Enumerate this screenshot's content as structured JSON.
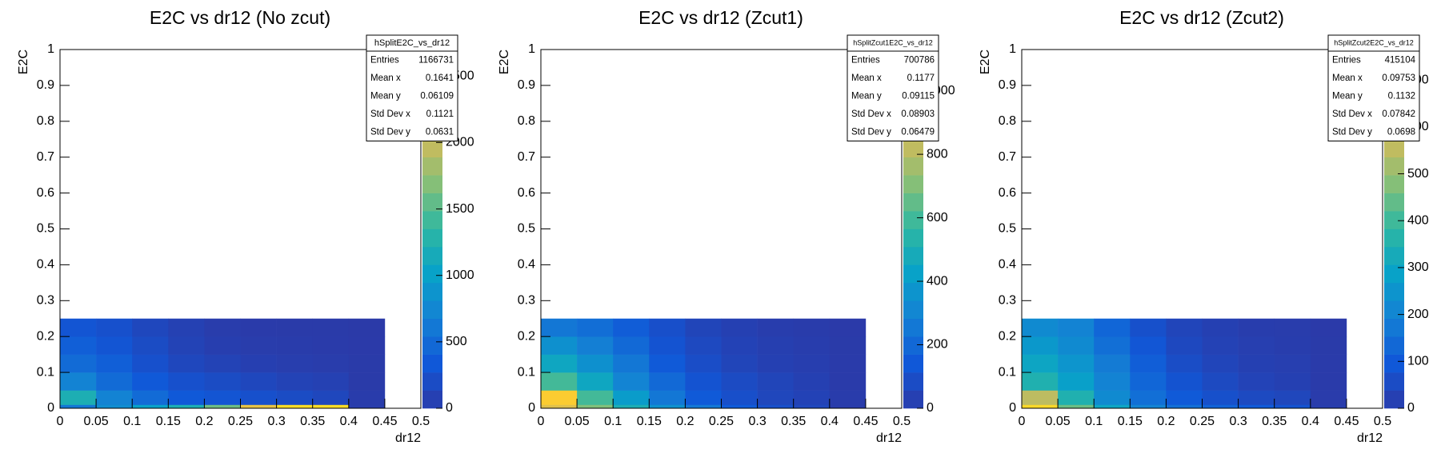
{
  "chart_data": [
    {
      "type": "heatmap",
      "title": "E2C vs dr12 (No zcut)",
      "xlabel": "dr12",
      "ylabel": "E2C",
      "xlim": [
        0,
        0.5
      ],
      "ylim": [
        0,
        1
      ],
      "xticks": [
        0,
        0.05,
        0.1,
        0.15,
        0.2,
        0.25,
        0.3,
        0.35,
        0.4,
        0.45,
        0.5
      ],
      "yticks": [
        0,
        0.1,
        0.2,
        0.3,
        0.4,
        0.5,
        0.6,
        0.7,
        0.8,
        0.9,
        1
      ],
      "xbins": [
        0,
        0.05,
        0.1,
        0.15,
        0.2,
        0.25,
        0.3,
        0.35,
        0.4,
        0.45,
        0.5
      ],
      "ybins": [
        0,
        0.01,
        0.05,
        0.1,
        0.15,
        0.2,
        0.25
      ],
      "values": [
        [
          600,
          800,
          1000,
          1200,
          1600,
          2200,
          2500,
          2500,
          30,
          0
        ],
        [
          1200,
          700,
          500,
          350,
          300,
          250,
          200,
          150,
          20,
          0
        ],
        [
          700,
          500,
          350,
          250,
          200,
          150,
          100,
          80,
          10,
          0
        ],
        [
          500,
          400,
          250,
          150,
          100,
          60,
          40,
          30,
          10,
          0
        ],
        [
          400,
          300,
          200,
          100,
          50,
          30,
          20,
          15,
          5,
          0
        ],
        [
          300,
          250,
          150,
          80,
          30,
          15,
          10,
          8,
          3,
          0
        ]
      ],
      "zlim": [
        0,
        2700
      ],
      "zticks": [
        0,
        500,
        1000,
        1500,
        2000,
        2500
      ],
      "colormap": [
        "#2b3aa8",
        "#1058d8",
        "#1480d4",
        "#08a2c8",
        "#2db7a2",
        "#85bf78",
        "#cfbb5a",
        "#fbc834",
        "#f8fa10"
      ],
      "stats": {
        "name": "hSplitE2C_vs_dr12",
        "rows": [
          [
            "Entries",
            1166731
          ],
          [
            "Mean x",
            0.1641
          ],
          [
            "Mean y",
            0.06109
          ],
          [
            "Std Dev x",
            0.1121
          ],
          [
            "Std Dev y",
            0.0631
          ]
        ]
      }
    },
    {
      "type": "heatmap",
      "title": "E2C vs dr12 (Zcut1)",
      "xlabel": "dr12",
      "ylabel": "E2C",
      "xlim": [
        0,
        0.5
      ],
      "ylim": [
        0,
        1
      ],
      "xticks": [
        0,
        0.05,
        0.1,
        0.15,
        0.2,
        0.25,
        0.3,
        0.35,
        0.4,
        0.45,
        0.5
      ],
      "yticks": [
        0,
        0.1,
        0.2,
        0.3,
        0.4,
        0.5,
        0.6,
        0.7,
        0.8,
        0.9,
        1
      ],
      "xbins": [
        0,
        0.05,
        0.1,
        0.15,
        0.2,
        0.25,
        0.3,
        0.35,
        0.4,
        0.45,
        0.5
      ],
      "ybins": [
        0,
        0.01,
        0.05,
        0.1,
        0.15,
        0.2,
        0.25
      ],
      "values": [
        [
          900,
          700,
          500,
          350,
          250,
          150,
          100,
          60,
          10,
          0
        ],
        [
          1000,
          600,
          400,
          250,
          150,
          100,
          60,
          40,
          10,
          0
        ],
        [
          600,
          450,
          300,
          200,
          120,
          80,
          50,
          30,
          5,
          0
        ],
        [
          450,
          350,
          250,
          150,
          90,
          50,
          30,
          20,
          5,
          0
        ],
        [
          350,
          280,
          200,
          120,
          70,
          40,
          25,
          15,
          3,
          0
        ],
        [
          250,
          220,
          160,
          100,
          50,
          30,
          15,
          10,
          2,
          0
        ]
      ],
      "zlim": [
        0,
        1130
      ],
      "zticks": [
        0,
        200,
        400,
        600,
        800,
        1000
      ],
      "colormap": [
        "#2b3aa8",
        "#1058d8",
        "#1480d4",
        "#08a2c8",
        "#2db7a2",
        "#85bf78",
        "#cfbb5a",
        "#fbc834",
        "#f8fa10"
      ],
      "stats": {
        "name": "hSplitZcut1E2C_vs_dr12",
        "rows": [
          [
            "Entries",
            700786
          ],
          [
            "Mean x",
            0.1177
          ],
          [
            "Mean y",
            0.09115
          ],
          [
            "Std Dev x",
            0.08903
          ],
          [
            "Std Dev y",
            0.06479
          ]
        ]
      }
    },
    {
      "type": "heatmap",
      "title": "E2C vs dr12 (Zcut2)",
      "xlabel": "dr12",
      "ylabel": "E2C",
      "xlim": [
        0,
        0.5
      ],
      "ylim": [
        0,
        1
      ],
      "xticks": [
        0,
        0.05,
        0.1,
        0.15,
        0.2,
        0.25,
        0.3,
        0.35,
        0.4,
        0.45,
        0.5
      ],
      "yticks": [
        0,
        0.1,
        0.2,
        0.3,
        0.4,
        0.5,
        0.6,
        0.7,
        0.8,
        0.9,
        1
      ],
      "xbins": [
        0,
        0.05,
        0.1,
        0.15,
        0.2,
        0.25,
        0.3,
        0.35,
        0.4,
        0.45,
        0.5
      ],
      "ybins": [
        0,
        0.01,
        0.05,
        0.1,
        0.15,
        0.2,
        0.25
      ],
      "values": [
        [
          700,
          450,
          300,
          200,
          150,
          120,
          100,
          80,
          10,
          0
        ],
        [
          550,
          350,
          220,
          150,
          100,
          70,
          50,
          40,
          5,
          0
        ],
        [
          350,
          280,
          200,
          130,
          80,
          50,
          30,
          20,
          3,
          0
        ],
        [
          300,
          250,
          180,
          110,
          60,
          35,
          20,
          15,
          3,
          0
        ],
        [
          260,
          220,
          150,
          90,
          45,
          25,
          15,
          10,
          2,
          0
        ],
        [
          220,
          200,
          130,
          70,
          35,
          20,
          10,
          8,
          1,
          0
        ]
      ],
      "zlim": [
        0,
        765
      ],
      "zticks": [
        0,
        100,
        200,
        300,
        400,
        500,
        600,
        700
      ],
      "colormap": [
        "#2b3aa8",
        "#1058d8",
        "#1480d4",
        "#08a2c8",
        "#2db7a2",
        "#85bf78",
        "#cfbb5a",
        "#fbc834",
        "#f8fa10"
      ],
      "stats": {
        "name": "hSplitZcut2E2C_vs_dr12",
        "rows": [
          [
            "Entries",
            415104
          ],
          [
            "Mean x",
            0.09753
          ],
          [
            "Mean y",
            0.1132
          ],
          [
            "Std Dev x",
            0.07842
          ],
          [
            "Std Dev y",
            0.0698
          ]
        ]
      }
    }
  ]
}
